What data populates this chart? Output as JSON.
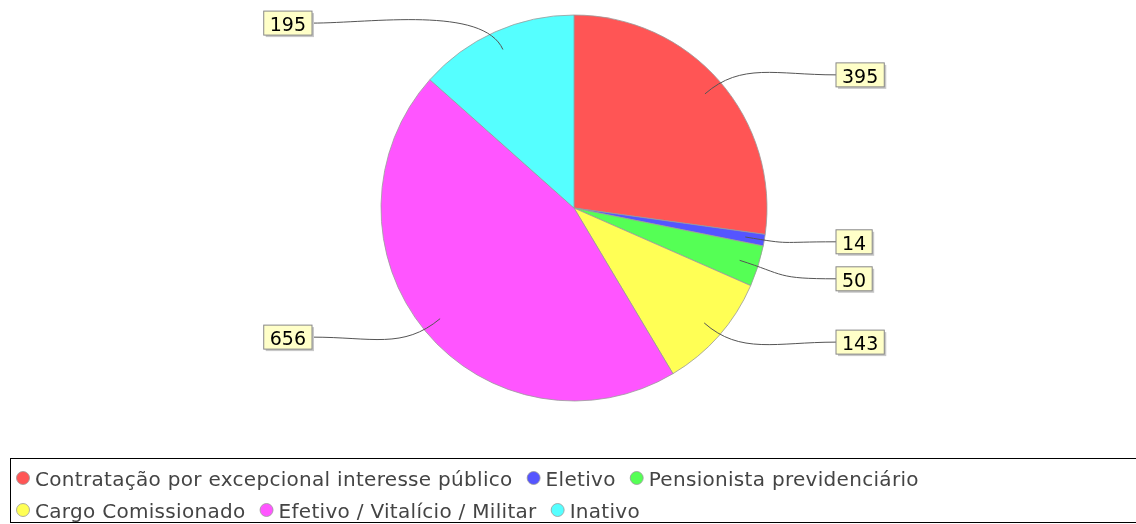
{
  "chart_data": {
    "type": "pie",
    "categories": [
      "Contratação por excepcional interesse público",
      "Eletivo",
      "Pensionista previdenciário",
      "Cargo Comissionado",
      "Efetivo / Vitalício / Militar",
      "Inativo"
    ],
    "values": [
      395,
      14,
      50,
      143,
      656,
      195
    ],
    "colors": [
      "#ff5555",
      "#5555ff",
      "#55ff55",
      "#ffff55",
      "#ff55ff",
      "#55ffff"
    ],
    "data_labels": true,
    "legend": "bottom"
  }
}
